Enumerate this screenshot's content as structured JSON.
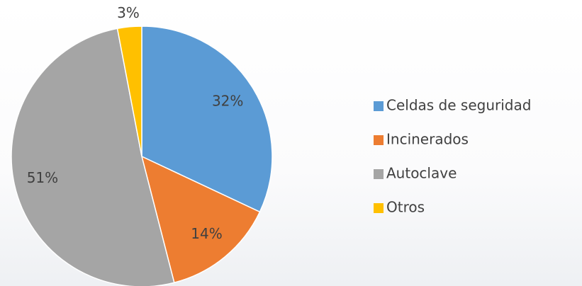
{
  "chart_data": {
    "type": "pie",
    "categories": [
      "Celdas de seguridad",
      "Incinerados",
      "Autoclave",
      "Otros"
    ],
    "values": [
      32,
      14,
      51,
      3
    ],
    "value_labels": [
      "32%",
      "14%",
      "51%",
      "3%"
    ],
    "colors": [
      "#5b9bd5",
      "#ed7d31",
      "#a5a5a5",
      "#ffc000"
    ],
    "legend": "right"
  }
}
